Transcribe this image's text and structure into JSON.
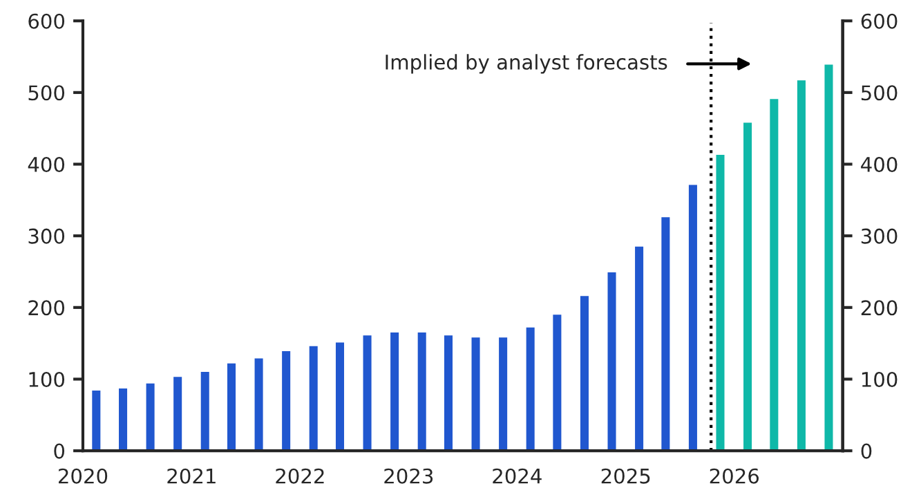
{
  "chart_data": {
    "type": "bar",
    "x": [
      "2020-02-15",
      "2020-05-15",
      "2020-08-15",
      "2020-11-15",
      "2021-02-15",
      "2021-05-15",
      "2021-08-15",
      "2021-11-15",
      "2022-02-15",
      "2022-05-15",
      "2022-08-15",
      "2022-11-15",
      "2023-02-15",
      "2023-05-15",
      "2023-08-15",
      "2023-11-15",
      "2024-02-15",
      "2024-05-15",
      "2024-08-15",
      "2024-11-15",
      "2025-02-15",
      "2025-05-15",
      "2025-08-15",
      "2025-11-15",
      "2026-02-15",
      "2026-05-15",
      "2026-08-15",
      "2026-11-15"
    ],
    "series": [
      {
        "color": "#2057cf",
        "values": [
          84,
          87,
          94,
          103,
          110,
          122,
          129,
          139,
          146,
          151,
          161,
          165,
          165,
          161,
          158,
          158,
          172,
          190,
          216,
          249,
          285,
          326,
          371,
          null,
          null,
          null,
          null,
          null
        ]
      },
      {
        "color": "#0fb8a8",
        "values": [
          null,
          null,
          null,
          null,
          null,
          null,
          null,
          null,
          null,
          null,
          null,
          null,
          null,
          null,
          null,
          null,
          null,
          null,
          null,
          null,
          null,
          null,
          null,
          413,
          458,
          491,
          517,
          539
        ]
      }
    ],
    "xlim": [
      "2020-01-01",
      "2027-01-01"
    ],
    "xticks": [
      "2020",
      "2021",
      "2022",
      "2023",
      "2024",
      "2025",
      "2026"
    ],
    "ylim": [
      0,
      600
    ],
    "yticks": [
      0,
      100,
      200,
      300,
      400,
      500,
      600
    ],
    "y2lim": [
      0,
      600
    ],
    "y2ticks": [
      0,
      100,
      200,
      300,
      400,
      500,
      600
    ],
    "ref_lines": [
      {
        "axis": "x",
        "value": "2025-10-15",
        "line_style": "dotted",
        "color": "#000000"
      }
    ],
    "annotations": [
      "Implied by analyst forecasts"
    ],
    "grid": false,
    "legend": false
  }
}
